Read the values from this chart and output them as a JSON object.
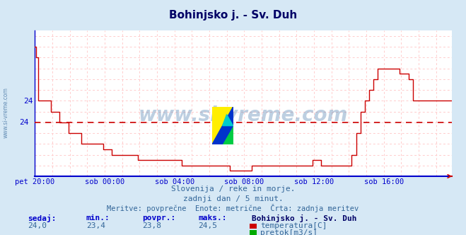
{
  "title": "Bohinjsko j. - Sv. Duh",
  "bg_color": "#d6e8f5",
  "plot_bg_color": "#ffffff",
  "line_color": "#cc0000",
  "dashed_line_color": "#cc0000",
  "grid_minor_color": "#ffcccc",
  "axis_color": "#0000cc",
  "text_color": "#336699",
  "title_color": "#000066",
  "subtitle1": "Slovenija / reke in morje.",
  "subtitle2": "zadnji dan / 5 minut.",
  "subtitle3": "Meritve: povprečne  Enote: metrične  Črta: zadnja meritev",
  "xlabel_ticks": [
    "pet 20:00",
    "sob 00:00",
    "sob 04:00",
    "sob 08:00",
    "sob 12:00",
    "sob 16:00"
  ],
  "ylim_min": 23.3,
  "ylim_max": 24.65,
  "ytick_val": 24.0,
  "ytick_label": "24",
  "avg_line_y": 23.8,
  "avg_line_label": "24",
  "sedaj": "24,0",
  "min_val": "23,4",
  "povpr_val": "23,8",
  "maks_val": "24,5",
  "station": "Bohinjsko j. - Sv. Duh",
  "label1": "temperatura[C]",
  "label1_color": "#cc0000",
  "label2": "pretok[m3/s]",
  "label2_color": "#00aa00"
}
